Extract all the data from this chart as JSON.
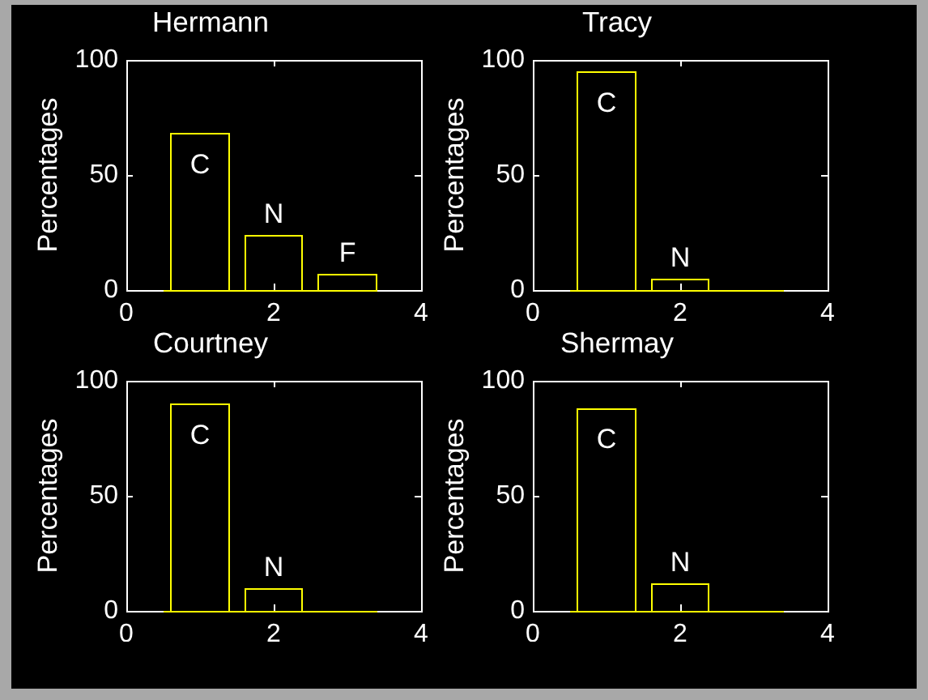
{
  "chart_data": [
    {
      "type": "bar",
      "title": "Hermann",
      "ylabel": "Percentages",
      "x": [
        1,
        2,
        3
      ],
      "values": [
        68,
        24,
        7
      ],
      "color": "#ffff00",
      "xlim": [
        0,
        4
      ],
      "xticks": [
        0,
        2,
        4
      ],
      "ylim": [
        0,
        100
      ],
      "yticks": [
        0,
        50,
        100
      ],
      "annotations": [
        {
          "text": "C",
          "x": 1,
          "y": 68
        },
        {
          "text": "N",
          "x": 2,
          "y": 24
        },
        {
          "text": "F",
          "x": 3,
          "y": 7
        }
      ]
    },
    {
      "type": "bar",
      "title": "Tracy",
      "ylabel": "Percentages",
      "x": [
        1,
        2,
        3
      ],
      "values": [
        95,
        5,
        0
      ],
      "color": "#ffff00",
      "xlim": [
        0,
        4
      ],
      "xticks": [
        0,
        2,
        4
      ],
      "ylim": [
        0,
        100
      ],
      "yticks": [
        0,
        50,
        100
      ],
      "annotations": [
        {
          "text": "C",
          "x": 1,
          "y": 95
        },
        {
          "text": "N",
          "x": 2,
          "y": 5
        }
      ]
    },
    {
      "type": "bar",
      "title": "Courtney",
      "ylabel": "Percentages",
      "x": [
        1,
        2,
        3
      ],
      "values": [
        90,
        10,
        0
      ],
      "color": "#ffff00",
      "xlim": [
        0,
        4
      ],
      "xticks": [
        0,
        2,
        4
      ],
      "ylim": [
        0,
        100
      ],
      "yticks": [
        0,
        50,
        100
      ],
      "annotations": [
        {
          "text": "C",
          "x": 1,
          "y": 90
        },
        {
          "text": "N",
          "x": 2,
          "y": 10
        }
      ]
    },
    {
      "type": "bar",
      "title": "Shermay",
      "ylabel": "Percentages",
      "x": [
        1,
        2,
        3
      ],
      "values": [
        88,
        12,
        0
      ],
      "color": "#ffff00",
      "xlim": [
        0,
        4
      ],
      "xticks": [
        0,
        2,
        4
      ],
      "ylim": [
        0,
        100
      ],
      "yticks": [
        0,
        50,
        100
      ],
      "annotations": [
        {
          "text": "C",
          "x": 1,
          "y": 88
        },
        {
          "text": "N",
          "x": 2,
          "y": 12
        }
      ]
    }
  ]
}
